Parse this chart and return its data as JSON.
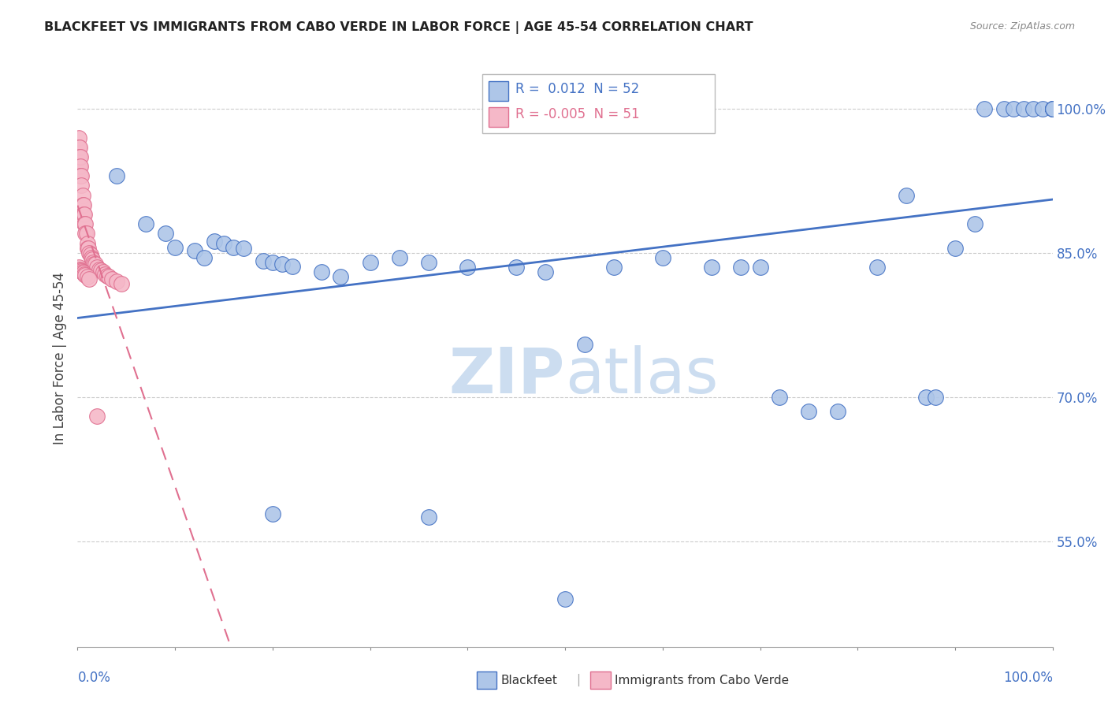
{
  "title": "BLACKFEET VS IMMIGRANTS FROM CABO VERDE IN LABOR FORCE | AGE 45-54 CORRELATION CHART",
  "source": "Source: ZipAtlas.com",
  "ylabel": "In Labor Force | Age 45-54",
  "legend_label1": "Blackfeet",
  "legend_label2": "Immigrants from Cabo Verde",
  "R1": "0.012",
  "N1": "52",
  "R2": "-0.005",
  "N2": "51",
  "color_blue": "#aec6e8",
  "color_pink": "#f5b8c8",
  "color_blue_line": "#4472c4",
  "color_pink_line": "#e07090",
  "trendline_blue": "#4472c4",
  "trendline_pink": "#e07090",
  "watermark_color": "#ccddf0",
  "xlim": [
    0.0,
    1.0
  ],
  "ylim": [
    0.44,
    1.04
  ],
  "y_tick_values": [
    0.55,
    0.7,
    0.85,
    1.0
  ],
  "y_tick_labels": [
    "55.0%",
    "70.0%",
    "85.0%",
    "100.0%"
  ],
  "blue_x": [
    0.04,
    0.07,
    0.09,
    0.1,
    0.12,
    0.13,
    0.14,
    0.15,
    0.16,
    0.17,
    0.19,
    0.2,
    0.21,
    0.22,
    0.25,
    0.27,
    0.3,
    0.33,
    0.36,
    0.4,
    0.45,
    0.48,
    0.52,
    0.55,
    0.6,
    0.65,
    0.68,
    0.7,
    0.72,
    0.75,
    0.78,
    0.82,
    0.85,
    0.87,
    0.88,
    0.9,
    0.92,
    0.93,
    0.95,
    0.96,
    0.97,
    0.98,
    0.99,
    1.0,
    1.0,
    1.0,
    1.0,
    1.0,
    1.0,
    0.5,
    0.36,
    0.2
  ],
  "blue_y": [
    0.93,
    0.88,
    0.87,
    0.856,
    0.852,
    0.845,
    0.862,
    0.86,
    0.856,
    0.855,
    0.842,
    0.84,
    0.838,
    0.836,
    0.83,
    0.825,
    0.84,
    0.845,
    0.84,
    0.835,
    0.835,
    0.83,
    0.755,
    0.835,
    0.845,
    0.835,
    0.835,
    0.835,
    0.7,
    0.685,
    0.685,
    0.835,
    0.91,
    0.7,
    0.7,
    0.855,
    0.88,
    1.0,
    1.0,
    1.0,
    1.0,
    1.0,
    1.0,
    1.0,
    1.0,
    1.0,
    1.0,
    1.0,
    1.0,
    0.49,
    0.575,
    0.578
  ],
  "pink_x": [
    0.001,
    0.001,
    0.001,
    0.002,
    0.002,
    0.002,
    0.003,
    0.003,
    0.003,
    0.004,
    0.004,
    0.005,
    0.005,
    0.006,
    0.006,
    0.007,
    0.007,
    0.008,
    0.008,
    0.009,
    0.01,
    0.01,
    0.011,
    0.012,
    0.013,
    0.014,
    0.015,
    0.016,
    0.017,
    0.018,
    0.02,
    0.022,
    0.024,
    0.026,
    0.028,
    0.03,
    0.032,
    0.035,
    0.04,
    0.045,
    0.001,
    0.002,
    0.003,
    0.004,
    0.005,
    0.006,
    0.007,
    0.008,
    0.01,
    0.012,
    0.02
  ],
  "pink_y": [
    0.97,
    0.96,
    0.95,
    0.96,
    0.95,
    0.94,
    0.95,
    0.94,
    0.93,
    0.93,
    0.92,
    0.91,
    0.9,
    0.9,
    0.89,
    0.89,
    0.88,
    0.88,
    0.87,
    0.87,
    0.86,
    0.855,
    0.855,
    0.85,
    0.848,
    0.845,
    0.843,
    0.84,
    0.838,
    0.838,
    0.835,
    0.833,
    0.832,
    0.83,
    0.828,
    0.826,
    0.825,
    0.823,
    0.82,
    0.818,
    0.835,
    0.833,
    0.832,
    0.831,
    0.83,
    0.829,
    0.828,
    0.827,
    0.825,
    0.823,
    0.68
  ]
}
